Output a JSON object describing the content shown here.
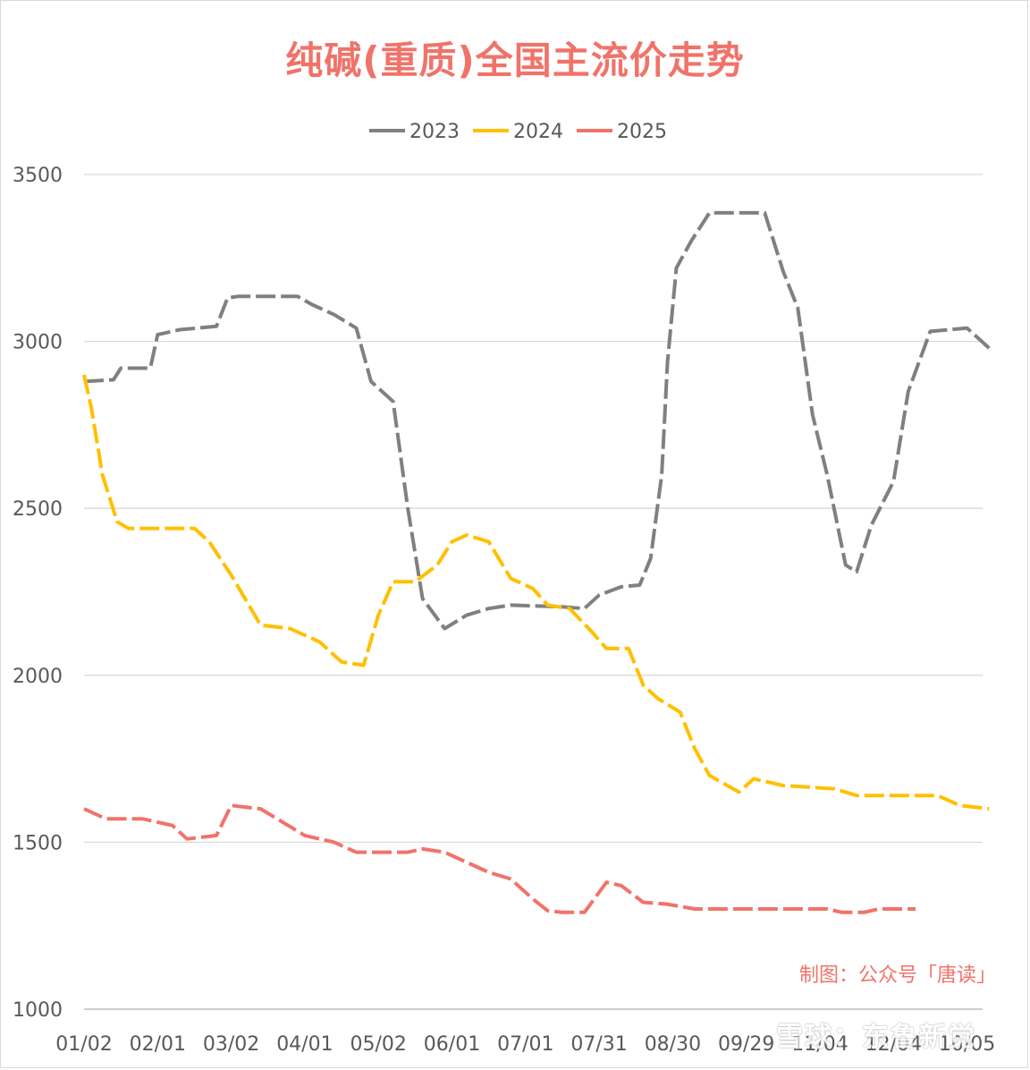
{
  "chart_data": {
    "type": "line",
    "title": "纯碱(重质)全国主流价走势",
    "ylim": [
      1000,
      3500
    ],
    "yticks": [
      1000,
      1500,
      2000,
      2500,
      3000,
      3500
    ],
    "x_categories": [
      "01/02",
      "02/01",
      "03/02",
      "04/01",
      "05/02",
      "06/01",
      "07/01",
      "07/31",
      "08/30",
      "09/29",
      "11/04",
      "12/04",
      "10/05"
    ],
    "grid": "horizontal",
    "legend_position": "top",
    "credit": "制图：公众号「唐读」",
    "watermark": "雪球：东鲁新觉",
    "colors": {
      "title": "#f0736a",
      "grid": "#d9d9d9",
      "axis": "#bfbfbf",
      "credit": "#f0736a"
    },
    "series": [
      {
        "name": "2023",
        "color": "#808080",
        "points": [
          [
            0,
            2880
          ],
          [
            0.4,
            2885
          ],
          [
            0.5,
            2920
          ],
          [
            0.9,
            2920
          ],
          [
            1.0,
            3020
          ],
          [
            1.3,
            3035
          ],
          [
            1.8,
            3045
          ],
          [
            1.95,
            3130
          ],
          [
            2.1,
            3135
          ],
          [
            2.9,
            3135
          ],
          [
            3.1,
            3110
          ],
          [
            3.4,
            3080
          ],
          [
            3.7,
            3040
          ],
          [
            3.9,
            2880
          ],
          [
            4.2,
            2820
          ],
          [
            4.4,
            2500
          ],
          [
            4.6,
            2230
          ],
          [
            4.9,
            2140
          ],
          [
            5.2,
            2180
          ],
          [
            5.5,
            2200
          ],
          [
            5.8,
            2210
          ],
          [
            6.5,
            2205
          ],
          [
            6.8,
            2200
          ],
          [
            7.0,
            2240
          ],
          [
            7.3,
            2265
          ],
          [
            7.55,
            2270
          ],
          [
            7.7,
            2350
          ],
          [
            7.85,
            2600
          ],
          [
            7.93,
            2940
          ],
          [
            8.05,
            3220
          ],
          [
            8.25,
            3300
          ],
          [
            8.5,
            3385
          ],
          [
            9.25,
            3385
          ],
          [
            9.5,
            3210
          ],
          [
            9.7,
            3100
          ],
          [
            9.9,
            2780
          ],
          [
            10.1,
            2600
          ],
          [
            10.35,
            2330
          ],
          [
            10.5,
            2310
          ],
          [
            10.7,
            2450
          ],
          [
            11.0,
            2580
          ],
          [
            11.2,
            2850
          ],
          [
            11.5,
            3030
          ],
          [
            12.0,
            3040
          ],
          [
            12.3,
            2980
          ]
        ]
      },
      {
        "name": "2024",
        "color": "#ffc000",
        "points": [
          [
            0,
            2900
          ],
          [
            0.1,
            2800
          ],
          [
            0.25,
            2600
          ],
          [
            0.45,
            2460
          ],
          [
            0.6,
            2440
          ],
          [
            1.5,
            2440
          ],
          [
            1.7,
            2400
          ],
          [
            2.0,
            2300
          ],
          [
            2.4,
            2150
          ],
          [
            2.8,
            2140
          ],
          [
            3.2,
            2100
          ],
          [
            3.5,
            2040
          ],
          [
            3.8,
            2030
          ],
          [
            4.0,
            2180
          ],
          [
            4.2,
            2280
          ],
          [
            4.5,
            2280
          ],
          [
            4.8,
            2330
          ],
          [
            5.0,
            2400
          ],
          [
            5.2,
            2420
          ],
          [
            5.5,
            2400
          ],
          [
            5.8,
            2290
          ],
          [
            6.1,
            2260
          ],
          [
            6.3,
            2210
          ],
          [
            6.6,
            2200
          ],
          [
            6.9,
            2130
          ],
          [
            7.1,
            2080
          ],
          [
            7.4,
            2080
          ],
          [
            7.6,
            1970
          ],
          [
            7.8,
            1930
          ],
          [
            8.1,
            1890
          ],
          [
            8.3,
            1780
          ],
          [
            8.5,
            1700
          ],
          [
            8.9,
            1650
          ],
          [
            9.1,
            1690
          ],
          [
            9.5,
            1670
          ],
          [
            10.2,
            1660
          ],
          [
            10.5,
            1640
          ],
          [
            11.6,
            1640
          ],
          [
            11.9,
            1610
          ],
          [
            12.3,
            1600
          ]
        ]
      },
      {
        "name": "2025",
        "color": "#f0736a",
        "points": [
          [
            0,
            1600
          ],
          [
            0.3,
            1570
          ],
          [
            0.8,
            1570
          ],
          [
            1.2,
            1550
          ],
          [
            1.4,
            1510
          ],
          [
            1.8,
            1520
          ],
          [
            2.0,
            1610
          ],
          [
            2.4,
            1600
          ],
          [
            2.7,
            1560
          ],
          [
            3.0,
            1520
          ],
          [
            3.4,
            1500
          ],
          [
            3.7,
            1470
          ],
          [
            4.4,
            1470
          ],
          [
            4.6,
            1480
          ],
          [
            4.9,
            1470
          ],
          [
            5.2,
            1440
          ],
          [
            5.5,
            1410
          ],
          [
            5.8,
            1390
          ],
          [
            6.1,
            1330
          ],
          [
            6.3,
            1295
          ],
          [
            6.5,
            1290
          ],
          [
            6.8,
            1290
          ],
          [
            7.1,
            1380
          ],
          [
            7.3,
            1370
          ],
          [
            7.6,
            1320
          ],
          [
            7.9,
            1315
          ],
          [
            8.3,
            1300
          ],
          [
            9.0,
            1300
          ],
          [
            9.5,
            1300
          ],
          [
            10.1,
            1300
          ],
          [
            10.3,
            1290
          ],
          [
            10.6,
            1290
          ],
          [
            10.8,
            1300
          ],
          [
            11.3,
            1300
          ]
        ]
      }
    ]
  }
}
